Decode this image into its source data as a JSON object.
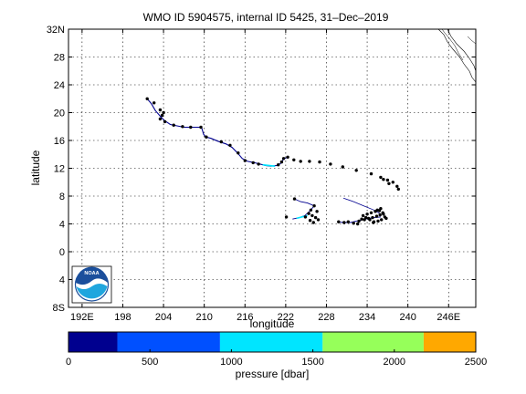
{
  "chart_data": {
    "type": "scatter",
    "title": "WMO ID 5904575, internal ID 5425, 31–Dec–2019",
    "xlabel": "longitude",
    "ylabel": "latitude",
    "xlim": [
      190,
      250
    ],
    "ylim": [
      -8,
      32
    ],
    "grid": true,
    "x_ticks": [
      192,
      198,
      204,
      210,
      216,
      222,
      228,
      234,
      240,
      246
    ],
    "x_tick_labels": [
      "192E",
      "198",
      "204",
      "210",
      "216",
      "222",
      "228",
      "234",
      "240",
      "246E"
    ],
    "y_ticks": [
      -8,
      -4,
      0,
      4,
      8,
      12,
      16,
      20,
      24,
      28,
      32
    ],
    "y_tick_labels": [
      "8S",
      "4",
      "0",
      "4",
      "8",
      "12",
      "16",
      "20",
      "24",
      "28",
      "32N"
    ],
    "track": [
      [
        201.6,
        22.0
      ],
      [
        202.2,
        21.3
      ],
      [
        202.8,
        20.3
      ],
      [
        203.6,
        19.4
      ],
      [
        204.1,
        18.9
      ],
      [
        205.0,
        18.3
      ],
      [
        206.0,
        18.1
      ],
      [
        207.0,
        17.9
      ],
      [
        208.2,
        17.9
      ],
      [
        209.6,
        17.9
      ],
      [
        209.9,
        16.9
      ],
      [
        210.2,
        16.5
      ],
      [
        211.0,
        16.3
      ],
      [
        212.0,
        15.9
      ],
      [
        213.2,
        15.5
      ],
      [
        214.1,
        15.0
      ],
      [
        214.9,
        14.2
      ],
      [
        215.6,
        13.4
      ],
      [
        216.4,
        13.0
      ],
      [
        217.4,
        12.8
      ],
      [
        218.2,
        12.6
      ],
      [
        219.0,
        12.4
      ],
      [
        219.8,
        12.3
      ],
      [
        220.8,
        12.4
      ],
      [
        221.4,
        12.8
      ],
      [
        221.7,
        13.4
      ],
      [
        222.1,
        13.5
      ]
    ],
    "track2": [
      [
        223.3,
        7.6
      ],
      [
        224.2,
        7.2
      ],
      [
        225.2,
        7.0
      ],
      [
        226.2,
        6.6
      ],
      [
        225.5,
        5.8
      ],
      [
        224.8,
        5.2
      ],
      [
        224.0,
        4.9
      ],
      [
        223.0,
        4.7
      ]
    ],
    "track3": [
      [
        229.6,
        4.3
      ],
      [
        230.5,
        4.2
      ],
      [
        231.5,
        4.2
      ],
      [
        232.4,
        4.4
      ],
      [
        233.3,
        4.6
      ],
      [
        234.2,
        4.8
      ],
      [
        235.0,
        4.9
      ],
      [
        236.0,
        5.0
      ]
    ],
    "track4": [
      [
        230.5,
        7.7
      ],
      [
        232.0,
        7.2
      ],
      [
        233.5,
        6.6
      ],
      [
        235.0,
        6.0
      ],
      [
        236.0,
        5.4
      ]
    ],
    "scatter_points": [
      [
        201.6,
        22.0
      ],
      [
        202.6,
        21.4
      ],
      [
        203.5,
        20.4
      ],
      [
        204.0,
        20.0
      ],
      [
        203.8,
        19.6
      ],
      [
        203.5,
        19.1
      ],
      [
        204.2,
        18.7
      ],
      [
        205.5,
        18.2
      ],
      [
        206.8,
        18.0
      ],
      [
        208.0,
        17.9
      ],
      [
        209.5,
        17.9
      ],
      [
        210.3,
        16.5
      ],
      [
        212.5,
        15.8
      ],
      [
        213.8,
        15.3
      ],
      [
        215.0,
        14.2
      ],
      [
        216.0,
        13.1
      ],
      [
        217.2,
        12.8
      ],
      [
        218.0,
        12.6
      ],
      [
        220.9,
        12.5
      ],
      [
        221.4,
        12.9
      ],
      [
        221.7,
        13.4
      ],
      [
        222.3,
        13.6
      ],
      [
        223.2,
        13.2
      ],
      [
        224.2,
        13.0
      ],
      [
        225.5,
        13.0
      ],
      [
        227.0,
        12.9
      ],
      [
        228.6,
        12.6
      ],
      [
        230.4,
        12.2
      ],
      [
        232.4,
        11.7
      ],
      [
        234.6,
        11.2
      ],
      [
        236.0,
        10.7
      ],
      [
        237.0,
        10.3
      ],
      [
        237.8,
        10.0
      ],
      [
        238.4,
        9.4
      ],
      [
        238.6,
        9.0
      ],
      [
        237.2,
        9.8
      ],
      [
        236.4,
        10.4
      ],
      [
        223.3,
        7.6
      ],
      [
        226.2,
        6.6
      ],
      [
        225.7,
        6.0
      ],
      [
        225.4,
        5.5
      ],
      [
        225.9,
        5.2
      ],
      [
        226.4,
        4.9
      ],
      [
        226.8,
        4.6
      ],
      [
        225.6,
        4.5
      ],
      [
        226.6,
        5.8
      ],
      [
        226.1,
        4.2
      ],
      [
        224.9,
        5.0
      ],
      [
        222.1,
        5.0
      ],
      [
        229.8,
        4.3
      ],
      [
        230.6,
        4.2
      ],
      [
        231.2,
        4.3
      ],
      [
        232.0,
        4.1
      ],
      [
        232.8,
        4.4
      ],
      [
        233.6,
        4.6
      ],
      [
        234.2,
        4.8
      ],
      [
        234.8,
        4.9
      ],
      [
        235.4,
        5.1
      ],
      [
        235.9,
        5.3
      ],
      [
        236.3,
        5.6
      ],
      [
        236.6,
        5.0
      ],
      [
        236.1,
        4.6
      ],
      [
        235.6,
        4.4
      ],
      [
        235.0,
        4.3
      ],
      [
        234.4,
        4.6
      ],
      [
        233.8,
        4.9
      ],
      [
        233.4,
        5.2
      ],
      [
        234.0,
        5.4
      ],
      [
        234.6,
        5.6
      ],
      [
        235.2,
        5.8
      ],
      [
        235.8,
        5.9
      ],
      [
        236.4,
        5.4
      ],
      [
        236.8,
        4.8
      ],
      [
        234.9,
        4.2
      ],
      [
        233.2,
        4.7
      ],
      [
        232.6,
        4.0
      ],
      [
        235.5,
        6.0
      ],
      [
        236.0,
        6.2
      ]
    ],
    "colorbar": {
      "label": "pressure [dbar]",
      "range": [
        0,
        2500
      ],
      "tick_values": [
        0,
        500,
        1000,
        1500,
        2000,
        2500
      ],
      "tick_labels": [
        "0",
        "500",
        "1000",
        "1500",
        "2000",
        "2500"
      ],
      "bands": [
        {
          "from": 0,
          "to": 300,
          "color": "#00008f"
        },
        {
          "from": 300,
          "to": 930,
          "color": "#0050ff"
        },
        {
          "from": 930,
          "to": 1560,
          "color": "#00e5ff"
        },
        {
          "from": 1560,
          "to": 2180,
          "color": "#96ff5a"
        },
        {
          "from": 2180,
          "to": 2500,
          "color": "#ffa800"
        }
      ]
    },
    "colors": {
      "track": "#00008f",
      "track_cyan": "#00e5ff",
      "point": "#000000",
      "grid": "#000000"
    }
  },
  "logo": {
    "text": "NOAA",
    "icon": "noaa-logo-icon"
  }
}
